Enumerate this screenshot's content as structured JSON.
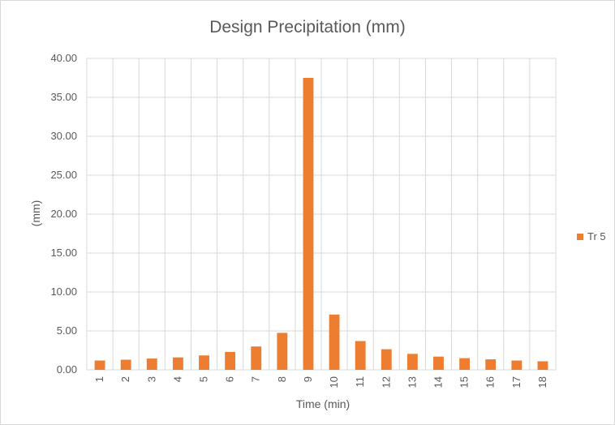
{
  "chart_data": {
    "type": "bar",
    "title": "Design Precipitation (mm)",
    "xlabel": "Time (min)",
    "ylabel": "(mm)",
    "categories": [
      "1",
      "2",
      "3",
      "4",
      "5",
      "6",
      "7",
      "8",
      "9",
      "10",
      "11",
      "12",
      "13",
      "14",
      "15",
      "16",
      "17",
      "18"
    ],
    "series": [
      {
        "name": "Tr 5",
        "color": "#ed7d31",
        "values": [
          1.2,
          1.3,
          1.45,
          1.6,
          1.85,
          2.3,
          3.0,
          4.75,
          37.5,
          7.1,
          3.7,
          2.65,
          2.05,
          1.7,
          1.5,
          1.35,
          1.2,
          1.1
        ]
      }
    ],
    "yticks": [
      "0.00",
      "5.00",
      "10.00",
      "15.00",
      "20.00",
      "25.00",
      "30.00",
      "35.00",
      "40.00"
    ],
    "ylim": [
      0,
      40
    ],
    "grid": true,
    "legend_position": "right"
  }
}
